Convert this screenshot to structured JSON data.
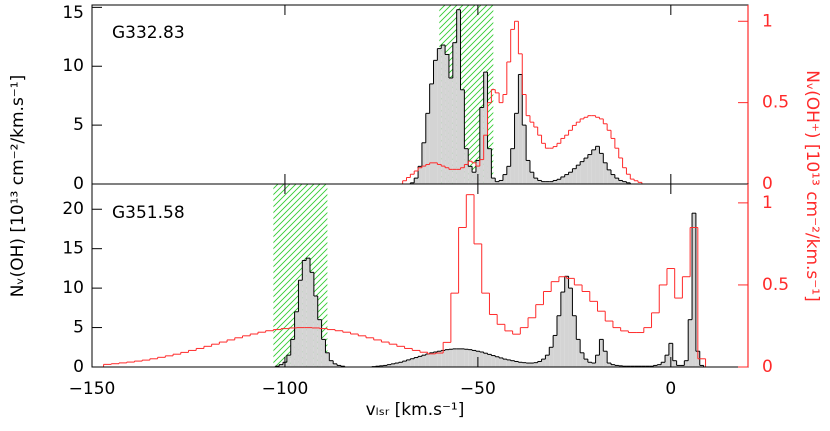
{
  "chart_data": [
    {
      "type": "step",
      "label": "G332.83",
      "ylabel": "Nᵥ(OH) [10¹³ cm⁻²/km.s⁻¹]",
      "y2label": "Nᵥ(OH⁺) [10¹³ cm⁻²/km.s⁻¹]",
      "xlim": [
        -150,
        20
      ],
      "ylim": [
        0,
        15.2
      ],
      "yticks": [
        0,
        5,
        10,
        15
      ],
      "y2lim": [
        0,
        1.1
      ],
      "y2ticks": [
        0,
        0.5,
        1
      ],
      "band": [
        -60,
        -46
      ],
      "band_color": "#33cc33",
      "series": [
        {
          "color": "#000000",
          "fill": "#d4d4d4",
          "x": [
            -72,
            -71,
            -70,
            -69,
            -68,
            -67,
            -66,
            -65,
            -64,
            -63,
            -62,
            -61,
            -60,
            -59,
            -58,
            -57,
            -56,
            -55,
            -54,
            -53,
            -52,
            -51,
            -50,
            -49,
            -48,
            -47,
            -46,
            -45,
            -44,
            -43,
            -42,
            -41,
            -40,
            -39,
            -38,
            -37,
            -36,
            -35,
            -34,
            -33,
            -32,
            -31,
            -30,
            -29,
            -28,
            -27,
            -26,
            -25,
            -24,
            -23,
            -22,
            -21,
            -20,
            -19,
            -18,
            -17,
            -16,
            -15,
            -14,
            -13,
            -12,
            -11,
            -10,
            -9,
            -8,
            -7,
            -6
          ],
          "values": [
            0,
            0,
            0,
            0,
            0,
            0.1,
            0.5,
            1.5,
            3.5,
            6.0,
            8.5,
            10.5,
            11.5,
            11.8,
            11.0,
            9.0,
            12.0,
            14.8,
            8.0,
            3.0,
            1.5,
            1.0,
            2.0,
            6.5,
            9.5,
            3.0,
            0.5,
            0.2,
            0.3,
            0.8,
            1.5,
            3.0,
            6.0,
            9.3,
            5.0,
            2.0,
            1.0,
            0.5,
            0.3,
            0.2,
            0.2,
            0.2,
            0.3,
            0.4,
            0.6,
            0.8,
            1.0,
            1.3,
            1.6,
            1.9,
            2.2,
            2.5,
            2.9,
            3.2,
            2.6,
            1.8,
            1.2,
            0.8,
            0.5,
            0.3,
            0.2,
            0.1,
            0,
            0,
            0,
            0,
            0
          ]
        },
        {
          "color": "#ff2a2a",
          "axis": "y2",
          "x": [
            -72,
            -71,
            -70,
            -69,
            -68,
            -67,
            -66,
            -65,
            -64,
            -63,
            -62,
            -61,
            -60,
            -59,
            -58,
            -57,
            -56,
            -55,
            -54,
            -53,
            -52,
            -51,
            -50,
            -49,
            -48,
            -47,
            -46,
            -45,
            -44,
            -43,
            -42,
            -41,
            -40,
            -39,
            -38,
            -37,
            -36,
            -35,
            -34,
            -33,
            -32,
            -31,
            -30,
            -29,
            -28,
            -27,
            -26,
            -25,
            -24,
            -23,
            -22,
            -21,
            -20,
            -19,
            -18,
            -17,
            -16,
            -15,
            -14,
            -13,
            -12,
            -11,
            -10,
            -9,
            -8,
            -7,
            -6
          ],
          "values": [
            0,
            0,
            0,
            0.02,
            0.04,
            0.06,
            0.08,
            0.1,
            0.11,
            0.12,
            0.13,
            0.13,
            0.12,
            0.11,
            0.1,
            0.09,
            0.09,
            0.09,
            0.1,
            0.12,
            0.14,
            0.13,
            0.11,
            0.15,
            0.3,
            0.5,
            0.58,
            0.56,
            0.5,
            0.55,
            0.75,
            0.95,
            1.0,
            0.8,
            0.55,
            0.42,
            0.38,
            0.35,
            0.3,
            0.25,
            0.22,
            0.22,
            0.23,
            0.25,
            0.28,
            0.3,
            0.33,
            0.36,
            0.38,
            0.4,
            0.41,
            0.42,
            0.42,
            0.41,
            0.4,
            0.37,
            0.33,
            0.28,
            0.22,
            0.16,
            0.1,
            0.06,
            0.03,
            0.02,
            0.01,
            0,
            0
          ]
        }
      ]
    },
    {
      "type": "step",
      "label": "G351.58",
      "xlabel": "vₗₛᵣ [km.s⁻¹]",
      "xlim": [
        -150,
        20
      ],
      "xticks": [
        {
          "value": -150,
          "label": "−150"
        },
        {
          "value": -100,
          "label": "−100"
        },
        {
          "value": -50,
          "label": "−50"
        },
        0
      ],
      "ylim": [
        0,
        23.2
      ],
      "yticks": [
        0,
        5,
        10,
        15,
        20
      ],
      "y2lim": [
        0,
        1.115
      ],
      "y2ticks": [
        0,
        0.5,
        1
      ],
      "band": [
        -103,
        -89
      ],
      "band_color": "#33cc33",
      "series": [
        {
          "color": "#000000",
          "fill": "#d4d4d4",
          "x": [
            -104,
            -103,
            -102,
            -101,
            -100,
            -99,
            -98,
            -97,
            -96,
            -95,
            -94,
            -93,
            -92,
            -91,
            -90,
            -89,
            -88,
            -87,
            -86,
            -85,
            -84,
            -83,
            -82,
            -81,
            -80,
            -79,
            -78,
            -77,
            -76,
            -75,
            -74,
            -73,
            -72,
            -71,
            -70,
            -69,
            -68,
            -67,
            -66,
            -65,
            -64,
            -63,
            -62,
            -61,
            -60,
            -59,
            -58,
            -57,
            -56,
            -55,
            -54,
            -53,
            -52,
            -51,
            -50,
            -49,
            -48,
            -47,
            -46,
            -45,
            -44,
            -43,
            -42,
            -41,
            -40,
            -39,
            -38,
            -37,
            -36,
            -35,
            -34,
            -33,
            -32,
            -31,
            -30,
            -29,
            -28,
            -27,
            -26,
            -25,
            -24,
            -23,
            -22,
            -21,
            -20,
            -19,
            -18,
            -17,
            -16,
            -15,
            -14,
            -13,
            -12,
            -11,
            -10,
            -9,
            -8,
            -7,
            -6,
            -5,
            -4,
            -3,
            -2,
            -1,
            0,
            1,
            2,
            3,
            4,
            5,
            6,
            7,
            8,
            9,
            10
          ],
          "values": [
            0,
            0,
            0.1,
            0.3,
            0.6,
            1.5,
            3.5,
            7.0,
            11.0,
            13.5,
            13.8,
            12.0,
            9.0,
            6.0,
            3.5,
            1.8,
            0.8,
            0.4,
            0.2,
            0.1,
            0,
            0,
            0,
            0,
            0,
            0,
            0,
            0.05,
            0.1,
            0.15,
            0.2,
            0.3,
            0.4,
            0.5,
            0.6,
            0.75,
            0.9,
            1.05,
            1.2,
            1.35,
            1.5,
            1.65,
            1.8,
            1.9,
            2.0,
            2.1,
            2.2,
            2.25,
            2.3,
            2.3,
            2.3,
            2.25,
            2.2,
            2.1,
            2.0,
            1.9,
            1.75,
            1.6,
            1.45,
            1.3,
            1.15,
            1.0,
            0.9,
            0.8,
            0.7,
            0.6,
            0.55,
            0.5,
            0.5,
            0.55,
            0.7,
            1.0,
            1.5,
            2.5,
            4.0,
            6.5,
            9.5,
            11.5,
            10.0,
            6.5,
            3.5,
            1.8,
            1.0,
            0.6,
            0.5,
            1.5,
            3.5,
            2.0,
            0.5,
            0.3,
            0.2,
            0.15,
            0.1,
            0.1,
            0.1,
            0.1,
            0.1,
            0.1,
            0.1,
            0.1,
            0.2,
            0.3,
            0.6,
            1.5,
            3.0,
            0.8,
            0.2,
            0.2,
            0.8,
            6.0,
            19.5,
            2.0,
            0.2,
            0,
            0
          ]
        },
        {
          "color": "#ff2a2a",
          "axis": "y2",
          "x": [
            -146,
            -144,
            -142,
            -140,
            -138,
            -136,
            -134,
            -132,
            -130,
            -128,
            -126,
            -124,
            -122,
            -120,
            -118,
            -116,
            -114,
            -112,
            -110,
            -108,
            -106,
            -104,
            -102,
            -100,
            -98,
            -96,
            -94,
            -92,
            -90,
            -88,
            -86,
            -84,
            -82,
            -80,
            -78,
            -76,
            -74,
            -72,
            -70,
            -68,
            -66,
            -64,
            -62,
            -60,
            -58,
            -56,
            -54,
            -52,
            -50,
            -48,
            -46,
            -44,
            -42,
            -40,
            -38,
            -36,
            -34,
            -32,
            -30,
            -28,
            -26,
            -24,
            -22,
            -20,
            -18,
            -16,
            -14,
            -12,
            -10,
            -8,
            -6,
            -4,
            -2,
            0,
            2,
            4,
            6,
            8,
            10
          ],
          "values": [
            0.016,
            0.02,
            0.025,
            0.03,
            0.036,
            0.042,
            0.05,
            0.059,
            0.068,
            0.078,
            0.089,
            0.101,
            0.113,
            0.126,
            0.139,
            0.152,
            0.165,
            0.178,
            0.19,
            0.201,
            0.212,
            0.221,
            0.228,
            0.234,
            0.238,
            0.24,
            0.24,
            0.238,
            0.234,
            0.228,
            0.221,
            0.212,
            0.201,
            0.19,
            0.178,
            0.165,
            0.152,
            0.139,
            0.126,
            0.113,
            0.101,
            0.09,
            0.08,
            0.085,
            0.15,
            0.45,
            0.85,
            1.05,
            0.75,
            0.45,
            0.32,
            0.26,
            0.22,
            0.2,
            0.24,
            0.3,
            0.38,
            0.46,
            0.52,
            0.55,
            0.54,
            0.5,
            0.46,
            0.4,
            0.34,
            0.28,
            0.24,
            0.22,
            0.21,
            0.21,
            0.24,
            0.33,
            0.5,
            0.6,
            0.42,
            0.55,
            0.85,
            0.05,
            0
          ]
        }
      ]
    }
  ]
}
